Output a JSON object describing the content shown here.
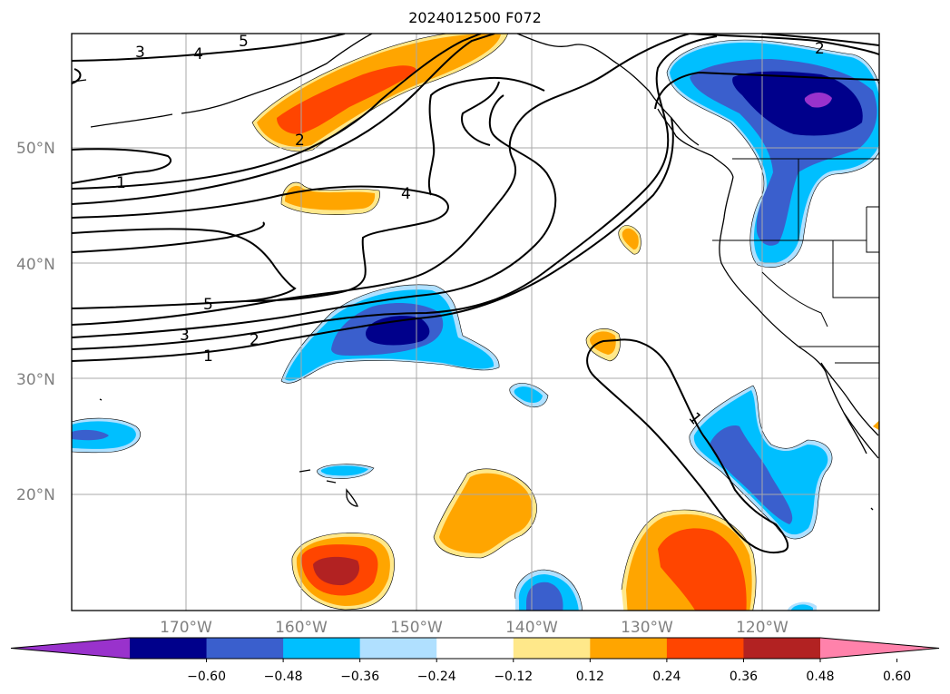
{
  "title": "2024012500 F072",
  "map": {
    "lat_labels": [
      "50°N",
      "40°N",
      "30°N",
      "20°N"
    ],
    "lon_labels": [
      "170°W",
      "160°W",
      "150°W",
      "140°W",
      "130°W",
      "120°W"
    ],
    "contour_labels": [
      "3",
      "4",
      "5",
      "2",
      "2",
      "1",
      "4",
      "5",
      "3",
      "2",
      "1",
      "1"
    ],
    "gridline_color": "#a9a9a9",
    "contour_color": "#000000"
  },
  "colorbar": {
    "levels": [
      "−0.60",
      "−0.48",
      "−0.36",
      "−0.24",
      "−0.12",
      "0.12",
      "0.24",
      "0.36",
      "0.48",
      "0.60"
    ],
    "colors": [
      "#9932cc",
      "#00008b",
      "#3a5fcd",
      "#00bfff",
      "#b0e0ff",
      "#ffffff",
      "#ffe88a",
      "#ffa500",
      "#ff4500",
      "#b22222",
      "#ff82ab"
    ]
  }
}
